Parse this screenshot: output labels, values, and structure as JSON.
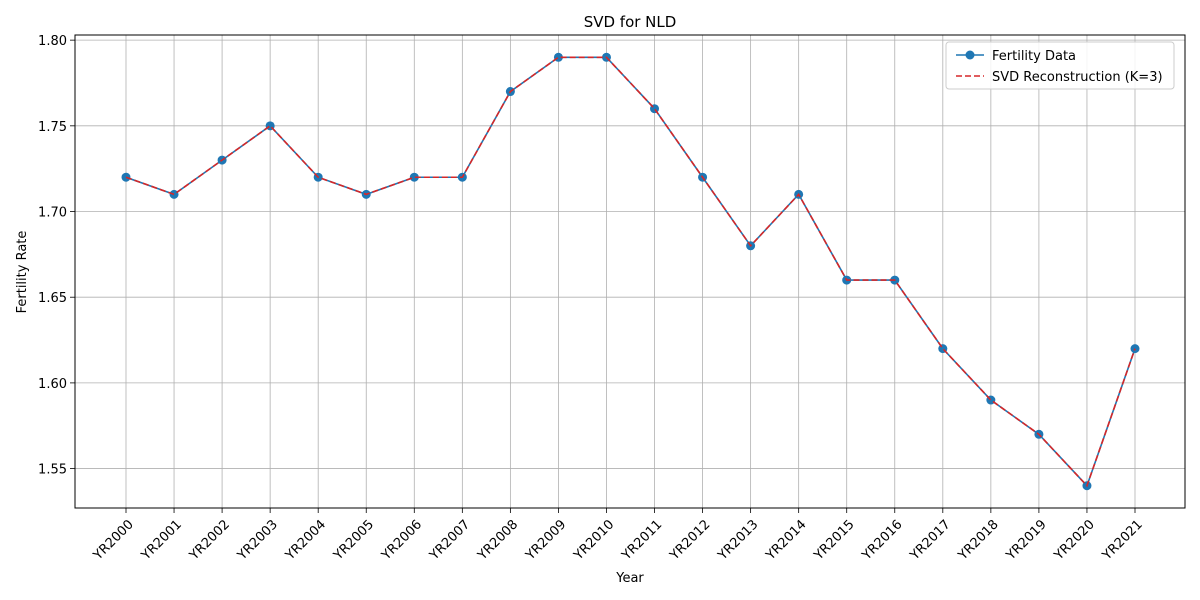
{
  "chart_data": {
    "type": "line",
    "title": "SVD for NLD",
    "xlabel": "Year",
    "ylabel": "Fertility Rate",
    "categories": [
      "YR2000",
      "YR2001",
      "YR2002",
      "YR2003",
      "YR2004",
      "YR2005",
      "YR2006",
      "YR2007",
      "YR2008",
      "YR2009",
      "YR2010",
      "YR2011",
      "YR2012",
      "YR2013",
      "YR2014",
      "YR2015",
      "YR2016",
      "YR2017",
      "YR2018",
      "YR2019",
      "YR2020",
      "YR2021"
    ],
    "yticks": [
      "1.55",
      "1.60",
      "1.65",
      "1.70",
      "1.75",
      "1.80"
    ],
    "ylim": [
      1.527,
      1.803
    ],
    "grid": true,
    "legend_position": "top-right",
    "series": [
      {
        "name": "Fertility Data",
        "color": "#1f77b4",
        "style": "solid-with-markers",
        "values": [
          1.72,
          1.71,
          1.73,
          1.75,
          1.72,
          1.71,
          1.72,
          1.72,
          1.77,
          1.79,
          1.79,
          1.76,
          1.72,
          1.68,
          1.71,
          1.66,
          1.66,
          1.62,
          1.59,
          1.57,
          1.54,
          1.62
        ]
      },
      {
        "name": "SVD Reconstruction (K=3)",
        "color": "#d62728",
        "style": "dashed",
        "values": [
          1.72,
          1.71,
          1.73,
          1.75,
          1.72,
          1.71,
          1.72,
          1.72,
          1.77,
          1.79,
          1.79,
          1.76,
          1.72,
          1.68,
          1.71,
          1.66,
          1.66,
          1.62,
          1.59,
          1.57,
          1.54,
          1.62
        ]
      }
    ]
  }
}
